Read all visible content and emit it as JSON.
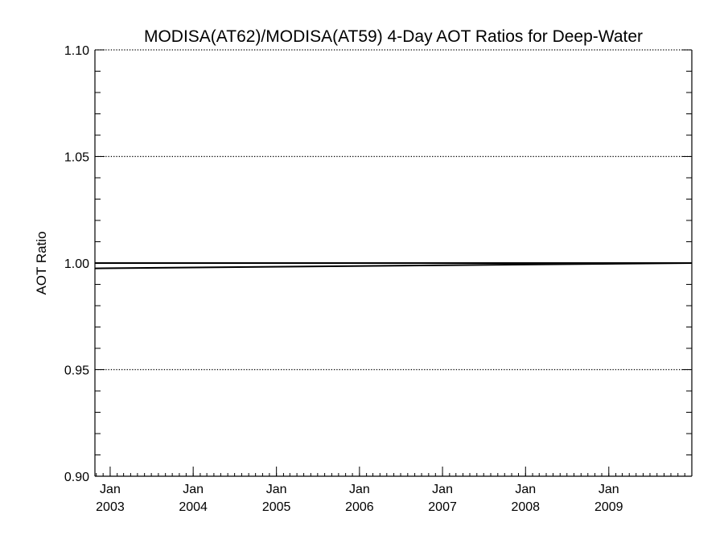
{
  "chart_data": {
    "type": "line",
    "title": "MODISA(AT62)/MODISA(AT59) 4-Day AOT Ratios for Deep-Water",
    "xlabel": "",
    "ylabel": "AOT Ratio",
    "xlim": [
      "2002-10-26",
      "2010-01-01"
    ],
    "ylim": [
      0.9,
      1.1
    ],
    "x_ticks": [
      {
        "date": "2003-01-01",
        "label": [
          "Jan",
          "2003"
        ]
      },
      {
        "date": "2004-01-01",
        "label": [
          "Jan",
          "2004"
        ]
      },
      {
        "date": "2005-01-01",
        "label": [
          "Jan",
          "2005"
        ]
      },
      {
        "date": "2006-01-01",
        "label": [
          "Jan",
          "2006"
        ]
      },
      {
        "date": "2007-01-01",
        "label": [
          "Jan",
          "2007"
        ]
      },
      {
        "date": "2008-01-01",
        "label": [
          "Jan",
          "2008"
        ]
      },
      {
        "date": "2009-01-01",
        "label": [
          "Jan",
          "2009"
        ]
      }
    ],
    "y_ticks": [
      "0.90",
      "0.95",
      "1.00",
      "1.05",
      "1.10"
    ],
    "y_gridlines": [
      0.95,
      1.0,
      1.05,
      1.1
    ],
    "grid_style": "dotted",
    "series": [
      {
        "x": [
          "2002-10-26",
          "2010-01-01"
        ],
        "values": [
          1.0,
          1.0
        ]
      },
      {
        "x": [
          "2002-10-26",
          "2010-01-01"
        ],
        "values": [
          0.9975,
          1.0
        ]
      }
    ],
    "colors": {
      "line": "#000000",
      "axis": "#000000",
      "background": "#ffffff"
    }
  }
}
